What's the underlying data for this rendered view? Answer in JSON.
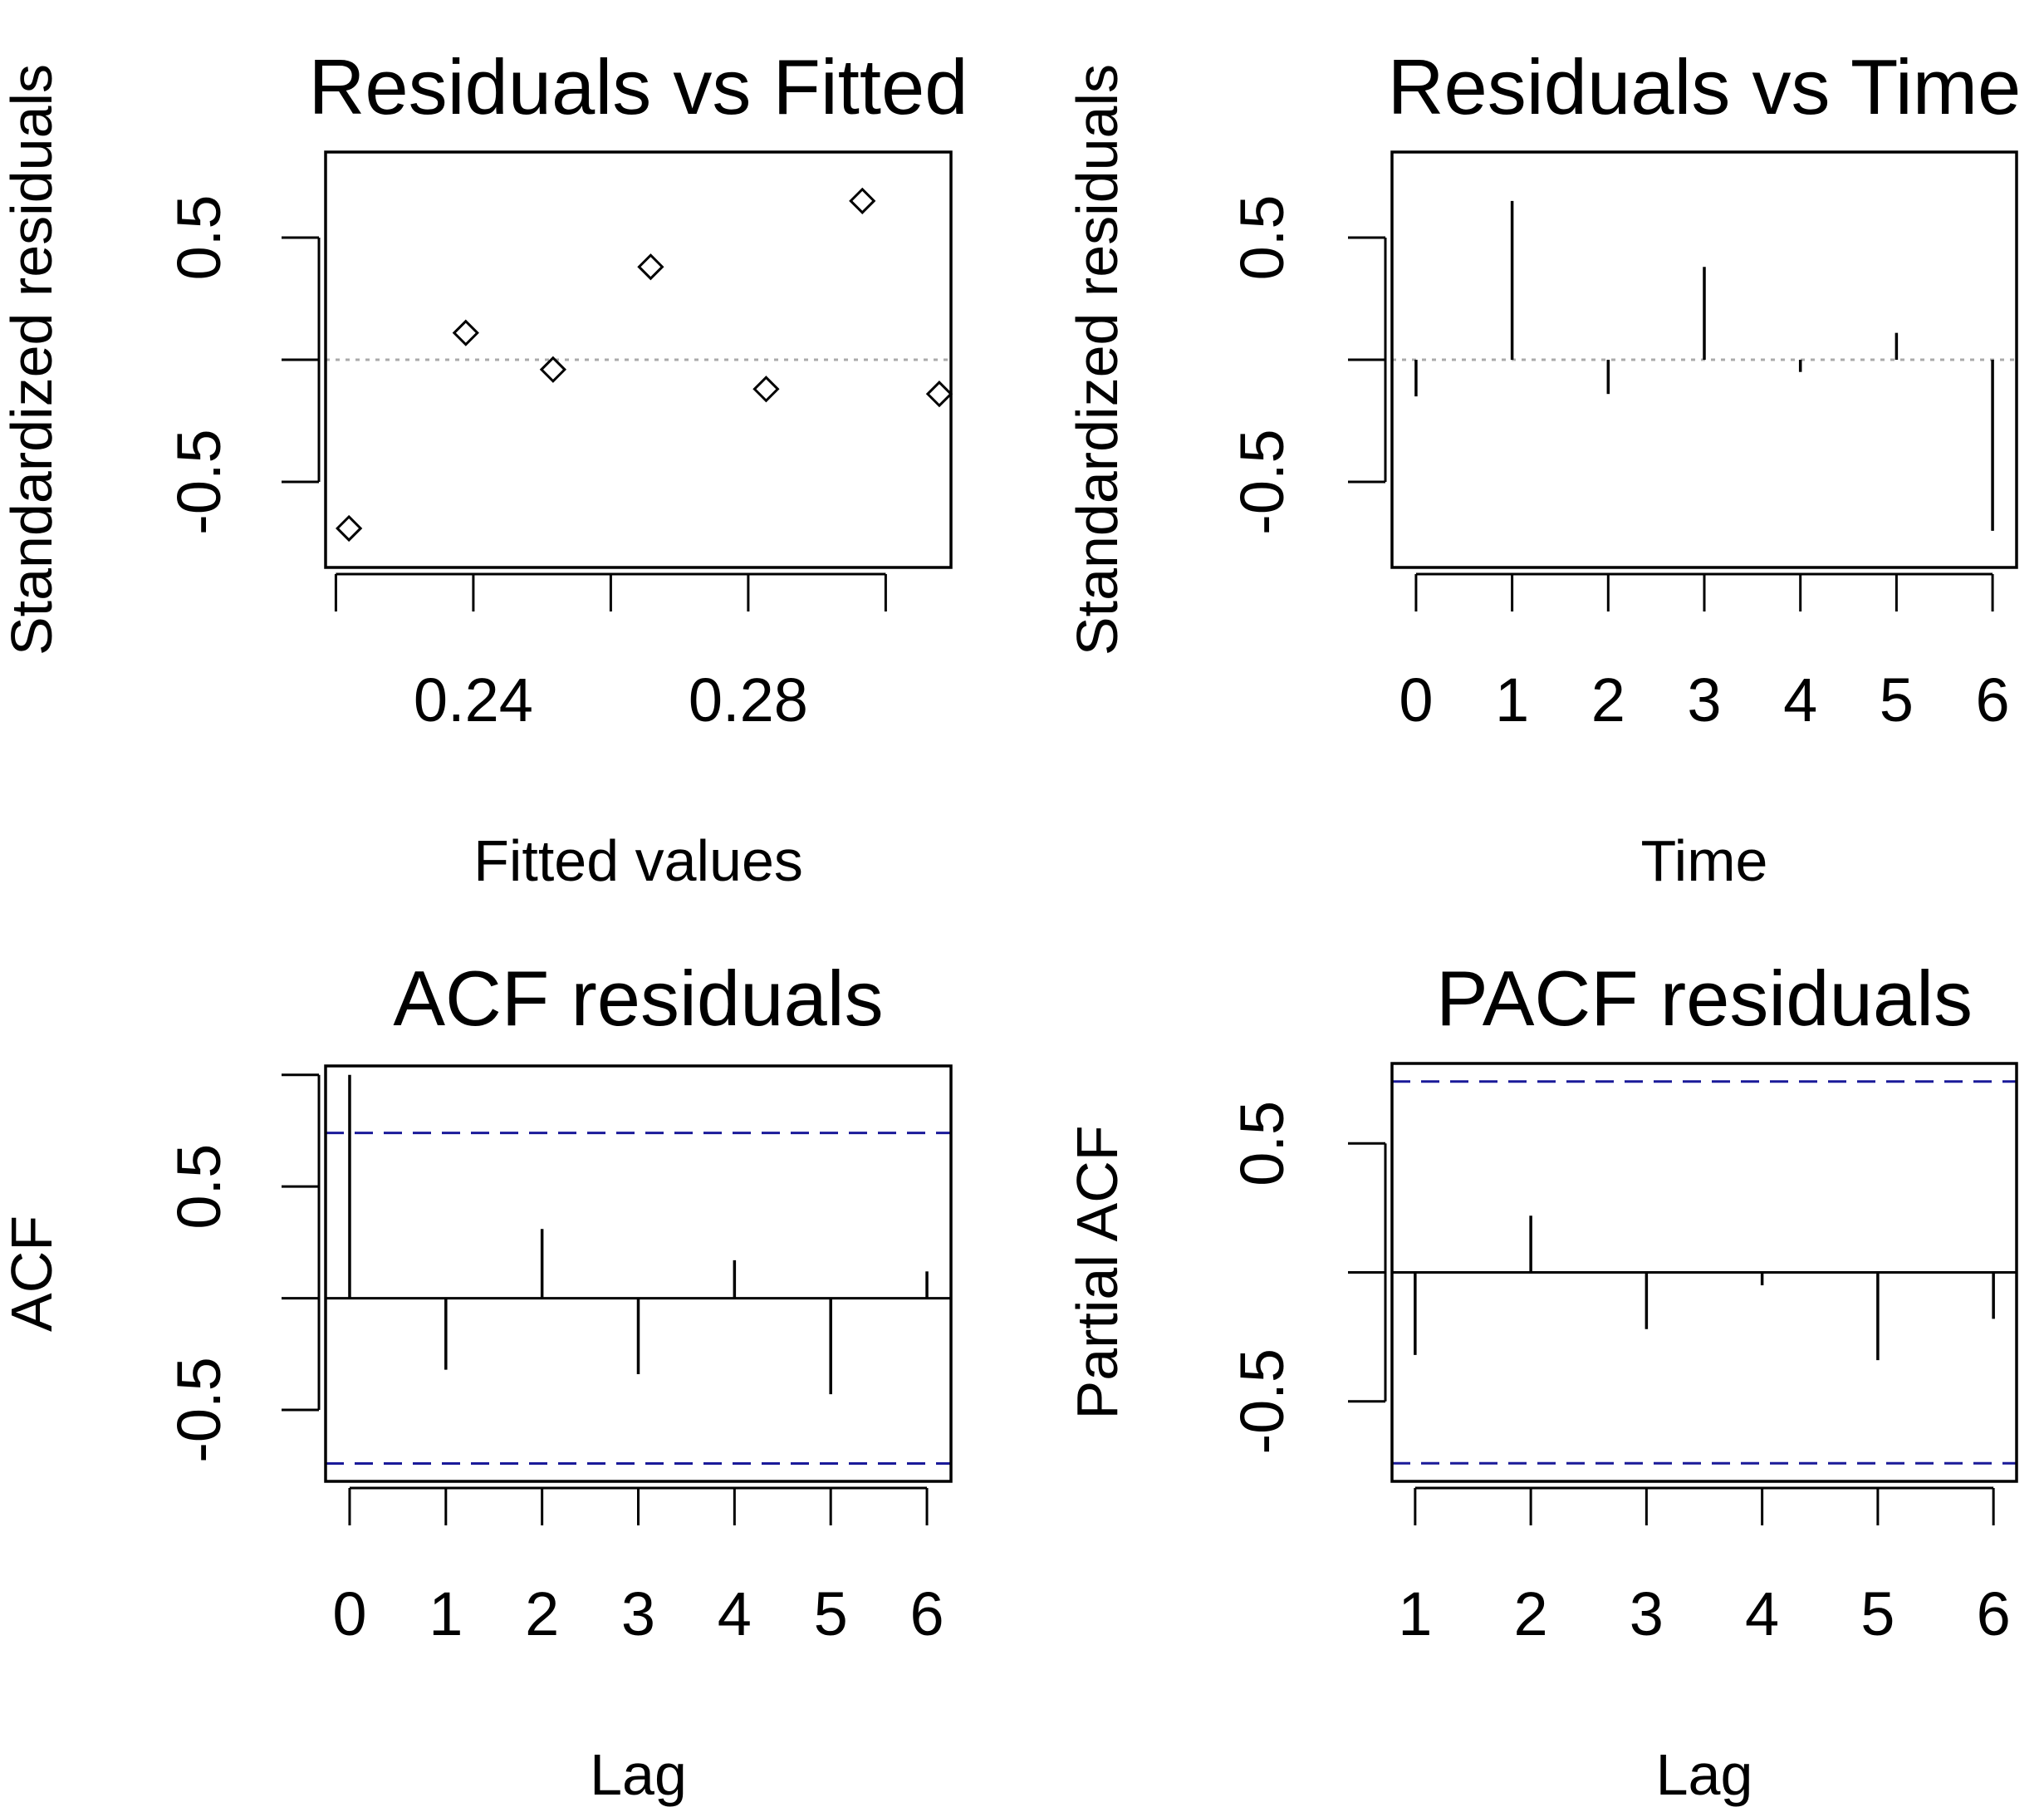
{
  "chart_data": [
    {
      "type": "scatter",
      "title": "Residuals vs Fitted",
      "xlabel": "Fitted values",
      "ylabel": "Standardized residuals",
      "xlim": [
        0.2185,
        0.3095
      ],
      "ylim": [
        -0.85,
        0.85
      ],
      "xticks": [
        0.22,
        0.24,
        0.26,
        0.28,
        0.3
      ],
      "xtick_labels": [
        "",
        "0.24",
        "",
        "0.28",
        ""
      ],
      "yticks": [
        -0.5,
        0.0,
        0.5
      ],
      "ytick_labels": [
        "-0.5",
        "",
        "0.5"
      ],
      "reference_line": {
        "y": 0,
        "style": "dotted",
        "color": "#aaaaaa"
      },
      "x": [
        0.2219,
        0.2389,
        0.2516,
        0.2658,
        0.2826,
        0.2966,
        0.3078
      ],
      "y": [
        -0.69,
        0.11,
        -0.04,
        0.38,
        -0.12,
        0.65,
        -0.14
      ]
    },
    {
      "type": "bar",
      "style": "spikes",
      "title": "Residuals vs Time",
      "xlabel": "Time",
      "ylabel": "Standardized residuals",
      "xlim": [
        -0.25,
        6.25
      ],
      "ylim": [
        -0.85,
        0.85
      ],
      "xticks": [
        0,
        1,
        2,
        3,
        4,
        5,
        6
      ],
      "xtick_labels": [
        "0",
        "1",
        "2",
        "3",
        "4",
        "5",
        "6"
      ],
      "yticks": [
        -0.5,
        0.0,
        0.5
      ],
      "ytick_labels": [
        "-0.5",
        "",
        "0.5"
      ],
      "reference_line": {
        "y": 0,
        "style": "dotted",
        "color": "#aaaaaa"
      },
      "x": [
        0,
        1,
        2,
        3,
        4,
        5,
        6
      ],
      "values": [
        -0.15,
        0.65,
        -0.14,
        0.38,
        -0.05,
        0.11,
        -0.7
      ]
    },
    {
      "type": "bar",
      "style": "spikes",
      "title": "ACF residuals",
      "xlabel": "Lag",
      "ylabel": "ACF",
      "xlim": [
        -0.25,
        6.25
      ],
      "ylim": [
        -0.82,
        1.04
      ],
      "xticks": [
        0,
        1,
        2,
        3,
        4,
        5,
        6
      ],
      "xtick_labels": [
        "0",
        "1",
        "2",
        "3",
        "4",
        "5",
        "6"
      ],
      "yticks": [
        -0.5,
        0.0,
        0.5,
        1.0
      ],
      "ytick_labels": [
        "-0.5",
        "",
        "0.5",
        ""
      ],
      "zero_line": true,
      "confidence_bounds": [
        0.74,
        -0.74
      ],
      "bound_color": "#1a1a99",
      "x": [
        0,
        1,
        2,
        3,
        4,
        5,
        6
      ],
      "values": [
        1.0,
        -0.32,
        0.31,
        -0.34,
        0.17,
        -0.43,
        0.12
      ]
    },
    {
      "type": "bar",
      "style": "spikes",
      "title": "PACF residuals",
      "xlabel": "Lag",
      "ylabel": "Partial ACF",
      "xlim": [
        0.8,
        6.2
      ],
      "ylim": [
        -0.81,
        0.81
      ],
      "xticks": [
        1,
        2,
        3,
        4,
        5,
        6
      ],
      "xtick_labels": [
        "1",
        "2",
        "3",
        "4",
        "5",
        "6"
      ],
      "yticks": [
        -0.5,
        0.0,
        0.5
      ],
      "ytick_labels": [
        "-0.5",
        "",
        "0.5"
      ],
      "zero_line": true,
      "confidence_bounds": [
        0.74,
        -0.74
      ],
      "bound_color": "#1a1a99",
      "x": [
        1,
        2,
        3,
        4,
        5,
        6
      ],
      "values": [
        -0.32,
        0.22,
        -0.22,
        -0.05,
        -0.34,
        -0.18
      ]
    }
  ]
}
